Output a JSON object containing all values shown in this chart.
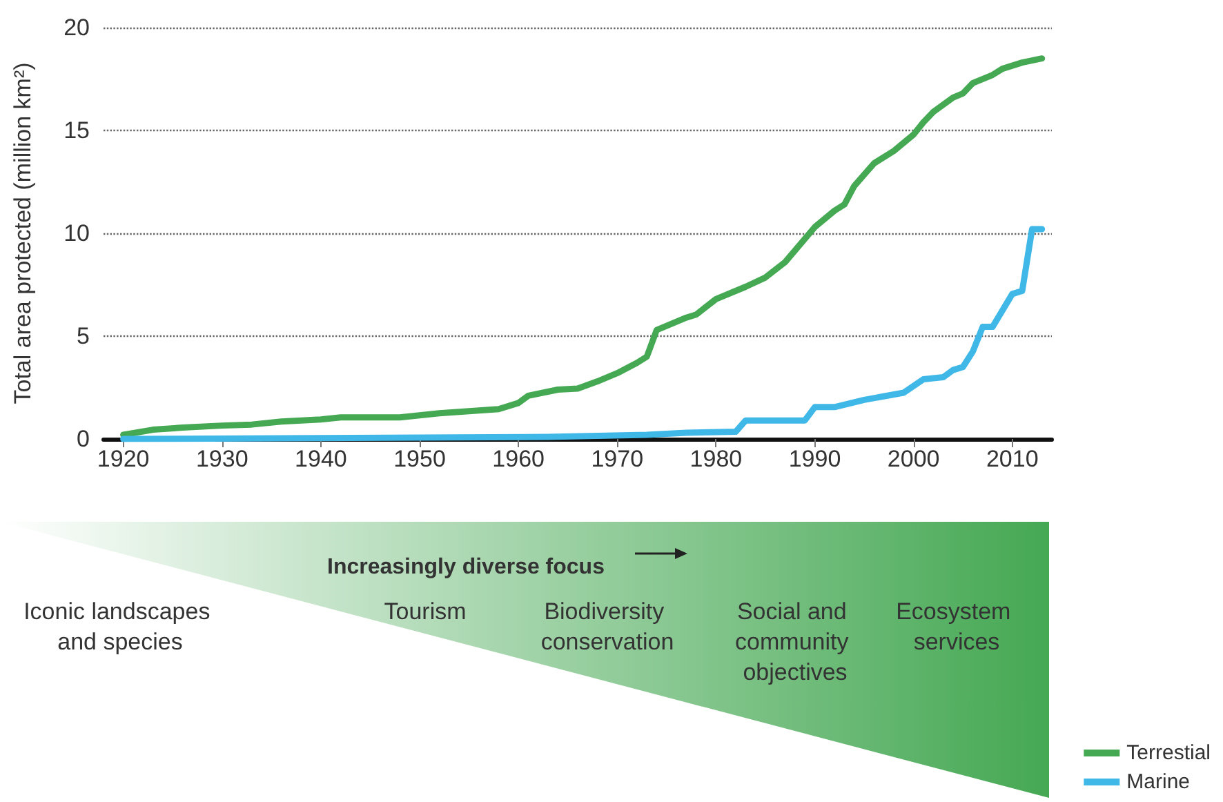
{
  "chart_data": {
    "type": "line",
    "ylabel": "Total area protected (million km²)",
    "xlim": [
      1918,
      2014
    ],
    "xticks": [
      1920,
      1930,
      1940,
      1950,
      1960,
      1970,
      1980,
      1990,
      2000,
      2010
    ],
    "ylim": [
      0,
      20
    ],
    "yticks": [
      0,
      5,
      10,
      15,
      20
    ],
    "grid": "y",
    "legend": "bottom right",
    "marker": "none",
    "line_style": "solid",
    "series": [
      {
        "name": "Terrestial",
        "color": "#45a853",
        "x": [
          1920,
          1923,
          1926,
          1930,
          1933,
          1936,
          1940,
          1942,
          1948,
          1950,
          1952,
          1955,
          1958,
          1960,
          1961,
          1964,
          1966,
          1968,
          1970,
          1972,
          1973,
          1974,
          1975,
          1977,
          1978,
          1980,
          1983,
          1985,
          1987,
          1990,
          1992,
          1993,
          1994,
          1996,
          1998,
          2000,
          2001,
          2002,
          2004,
          2005,
          2006,
          2008,
          2009,
          2011,
          2013
        ],
        "values": [
          0.2,
          0.45,
          0.55,
          0.65,
          0.7,
          0.85,
          0.95,
          1.05,
          1.05,
          1.15,
          1.25,
          1.35,
          1.45,
          1.75,
          2.1,
          2.4,
          2.45,
          2.8,
          3.2,
          3.7,
          4.0,
          5.3,
          5.5,
          5.9,
          6.05,
          6.8,
          7.4,
          7.85,
          8.6,
          10.3,
          11.1,
          11.4,
          12.3,
          13.4,
          14.0,
          14.8,
          15.4,
          15.9,
          16.6,
          16.8,
          17.3,
          17.7,
          18.0,
          18.3,
          18.5
        ]
      },
      {
        "name": "Marine",
        "color": "#3fb8e8",
        "x": [
          1920,
          1963,
          1973,
          1977,
          1982,
          1983,
          1989,
          1990,
          1992,
          1995,
          1999,
          2001,
          2003,
          2004,
          2005,
          2006,
          2007,
          2008,
          2010,
          2011,
          2012,
          2013
        ],
        "values": [
          0,
          0.1,
          0.2,
          0.3,
          0.35,
          0.9,
          0.9,
          1.55,
          1.55,
          1.9,
          2.25,
          2.9,
          3.0,
          3.35,
          3.5,
          4.25,
          5.45,
          5.45,
          7.05,
          7.2,
          10.2,
          10.2
        ]
      }
    ],
    "annotations": [
      "Increasingly diverse focus",
      "Iconic landscapes and species",
      "Tourism",
      "Biodiversity conservation",
      "Social and community objectives",
      "Ecosystem services"
    ]
  }
}
